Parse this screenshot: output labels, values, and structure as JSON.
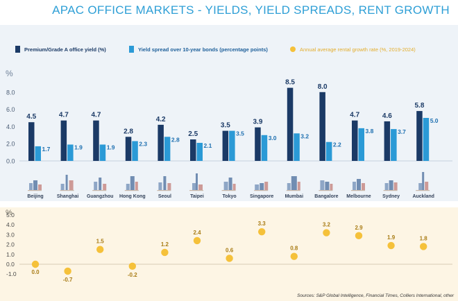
{
  "title": "APAC OFFICE MARKETS - YIELDS, YIELD SPREADS, RENT GROWTH",
  "legend": {
    "yield": "Premium/Grade A office yield (%)",
    "spread": "Yield spread over 10-year bonds (percentage points)",
    "rent": "Annual average rental growth rate (%, 2019-2024)"
  },
  "sources": "Sources: S&P Global Intelligence, Financial Times, Colliers International, other",
  "colors": {
    "yield": "#1b3a66",
    "spread": "#2b9ad6",
    "rent": "#f5c13a",
    "title": "#2e9fd6",
    "skyline": "#7d98bd"
  },
  "chart_data": [
    {
      "type": "bar",
      "ylabel": "%",
      "ylim": [
        0,
        9
      ],
      "yticks": [
        "8.0",
        "6.0",
        "4.0",
        "2.0",
        "0.0"
      ],
      "grid": false,
      "legend_position": "top",
      "categories": [
        "Beijing",
        "Shanghai",
        "Guangzhou",
        "Hong Kong",
        "Seoul",
        "Taipei",
        "Tokyo",
        "Singapore",
        "Mumbai",
        "Bangalore",
        "Melbourne",
        "Sydney",
        "Auckland"
      ],
      "series": [
        {
          "name": "Premium/Grade A office yield (%)",
          "values": [
            4.5,
            4.7,
            4.7,
            2.8,
            4.2,
            2.5,
            3.5,
            3.9,
            8.5,
            8.0,
            4.7,
            4.6,
            5.8
          ],
          "labels": [
            "4.5",
            "4.7",
            "4.7",
            "2.8",
            "4.2",
            "2.5",
            "3.5",
            "3.9",
            "8.5",
            "8.0",
            "4.7",
            "4.6",
            "5.8"
          ]
        },
        {
          "name": "Yield spread over 10-year bonds (percentage points)",
          "values": [
            1.7,
            1.9,
            1.9,
            2.3,
            2.8,
            2.1,
            3.5,
            3.0,
            3.2,
            2.2,
            3.8,
            3.7,
            5.0
          ],
          "labels": [
            "1.7",
            "1.9",
            "1.9",
            "2.3",
            "2.8",
            "2.1",
            "3.5",
            "3.0",
            "3.2",
            "2.2",
            "3.8",
            "3.7",
            "5.0"
          ]
        }
      ]
    },
    {
      "type": "scatter",
      "ylabel": "%",
      "ylim": [
        -1.5,
        5
      ],
      "yticks": [
        "5.0",
        "4.0",
        "3.0",
        "2.0",
        "1.0",
        "0.0",
        "-1.0"
      ],
      "categories": [
        "Beijing",
        "Shanghai",
        "Guangzhou",
        "Hong Kong",
        "Seoul",
        "Taipei",
        "Tokyo",
        "Singapore",
        "Mumbai",
        "Bangalore",
        "Melbourne",
        "Sydney",
        "Auckland"
      ],
      "series": [
        {
          "name": "Annual average rental growth rate (%, 2019-2024)",
          "values": [
            0.0,
            -0.7,
            1.5,
            -0.2,
            1.2,
            2.4,
            0.6,
            3.3,
            0.8,
            3.2,
            2.9,
            1.9,
            1.8
          ],
          "labels": [
            "0.0",
            "-0.7",
            "1.5",
            "-0.2",
            "1.2",
            "2.4",
            "0.6",
            "3.3",
            "0.8",
            "3.2",
            "2.9",
            "1.9",
            "1.8"
          ]
        }
      ]
    }
  ]
}
